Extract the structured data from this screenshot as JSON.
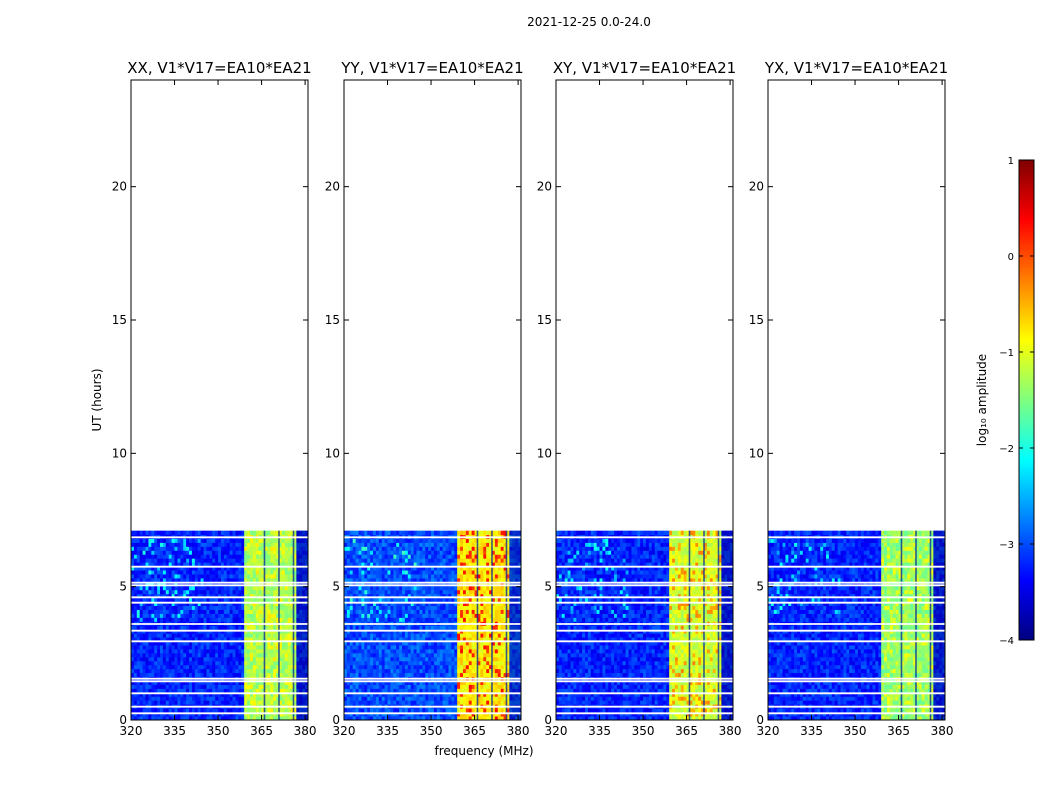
{
  "figure": {
    "suptitle": "2021-12-25 0.0-24.0",
    "xlabel": "frequency (MHz)",
    "ylabel": "UT (hours)"
  },
  "colorbar": {
    "label": "log₁₀ amplitude",
    "ticks": [
      "1",
      "0",
      "−1",
      "−2",
      "−3",
      "−4"
    ],
    "range": [
      -4,
      1
    ],
    "colormap": [
      "#00007f",
      "#0000ff",
      "#007fff",
      "#00ffff",
      "#7fff7f",
      "#ffff00",
      "#ff7f00",
      "#ff0000",
      "#7f0000"
    ]
  },
  "chart_data": {
    "type": "heatmap",
    "date": "2021-12-25",
    "time_range_hours": [
      0.0,
      24.0
    ],
    "xlim": [
      320,
      381
    ],
    "ylim": [
      0,
      24
    ],
    "x_ticks": [
      320,
      335,
      350,
      365,
      380
    ],
    "y_ticks": [
      0,
      5,
      10,
      15,
      20
    ],
    "data_coverage_hours": [
      0.0,
      7.1
    ],
    "flagged_rows_ut": [
      0.25,
      0.5,
      1.0,
      1.45,
      1.55,
      2.95,
      3.35,
      3.6,
      4.4,
      4.6,
      5.05,
      5.15,
      5.75,
      6.85
    ],
    "panels": [
      {
        "title": "XX, V1*V17=EA10*EA21",
        "background_log_amp": -3.2,
        "band_mhz": [
          359,
          377
        ],
        "band_log_amp": -1.3,
        "band_peak_log_amp": -0.9
      },
      {
        "title": "YY, V1*V17=EA10*EA21",
        "background_log_amp": -3.0,
        "band_mhz": [
          359,
          377
        ],
        "band_log_amp": -0.8,
        "band_peak_log_amp": 0.2
      },
      {
        "title": "XY, V1*V17=EA10*EA21",
        "background_log_amp": -3.2,
        "band_mhz": [
          359,
          377
        ],
        "band_log_amp": -1.1,
        "band_peak_log_amp": -0.4
      },
      {
        "title": "YX, V1*V17=EA10*EA21",
        "background_log_amp": -3.2,
        "band_mhz": [
          359,
          377
        ],
        "band_log_amp": -1.4,
        "band_peak_log_amp": -1.0
      }
    ]
  }
}
